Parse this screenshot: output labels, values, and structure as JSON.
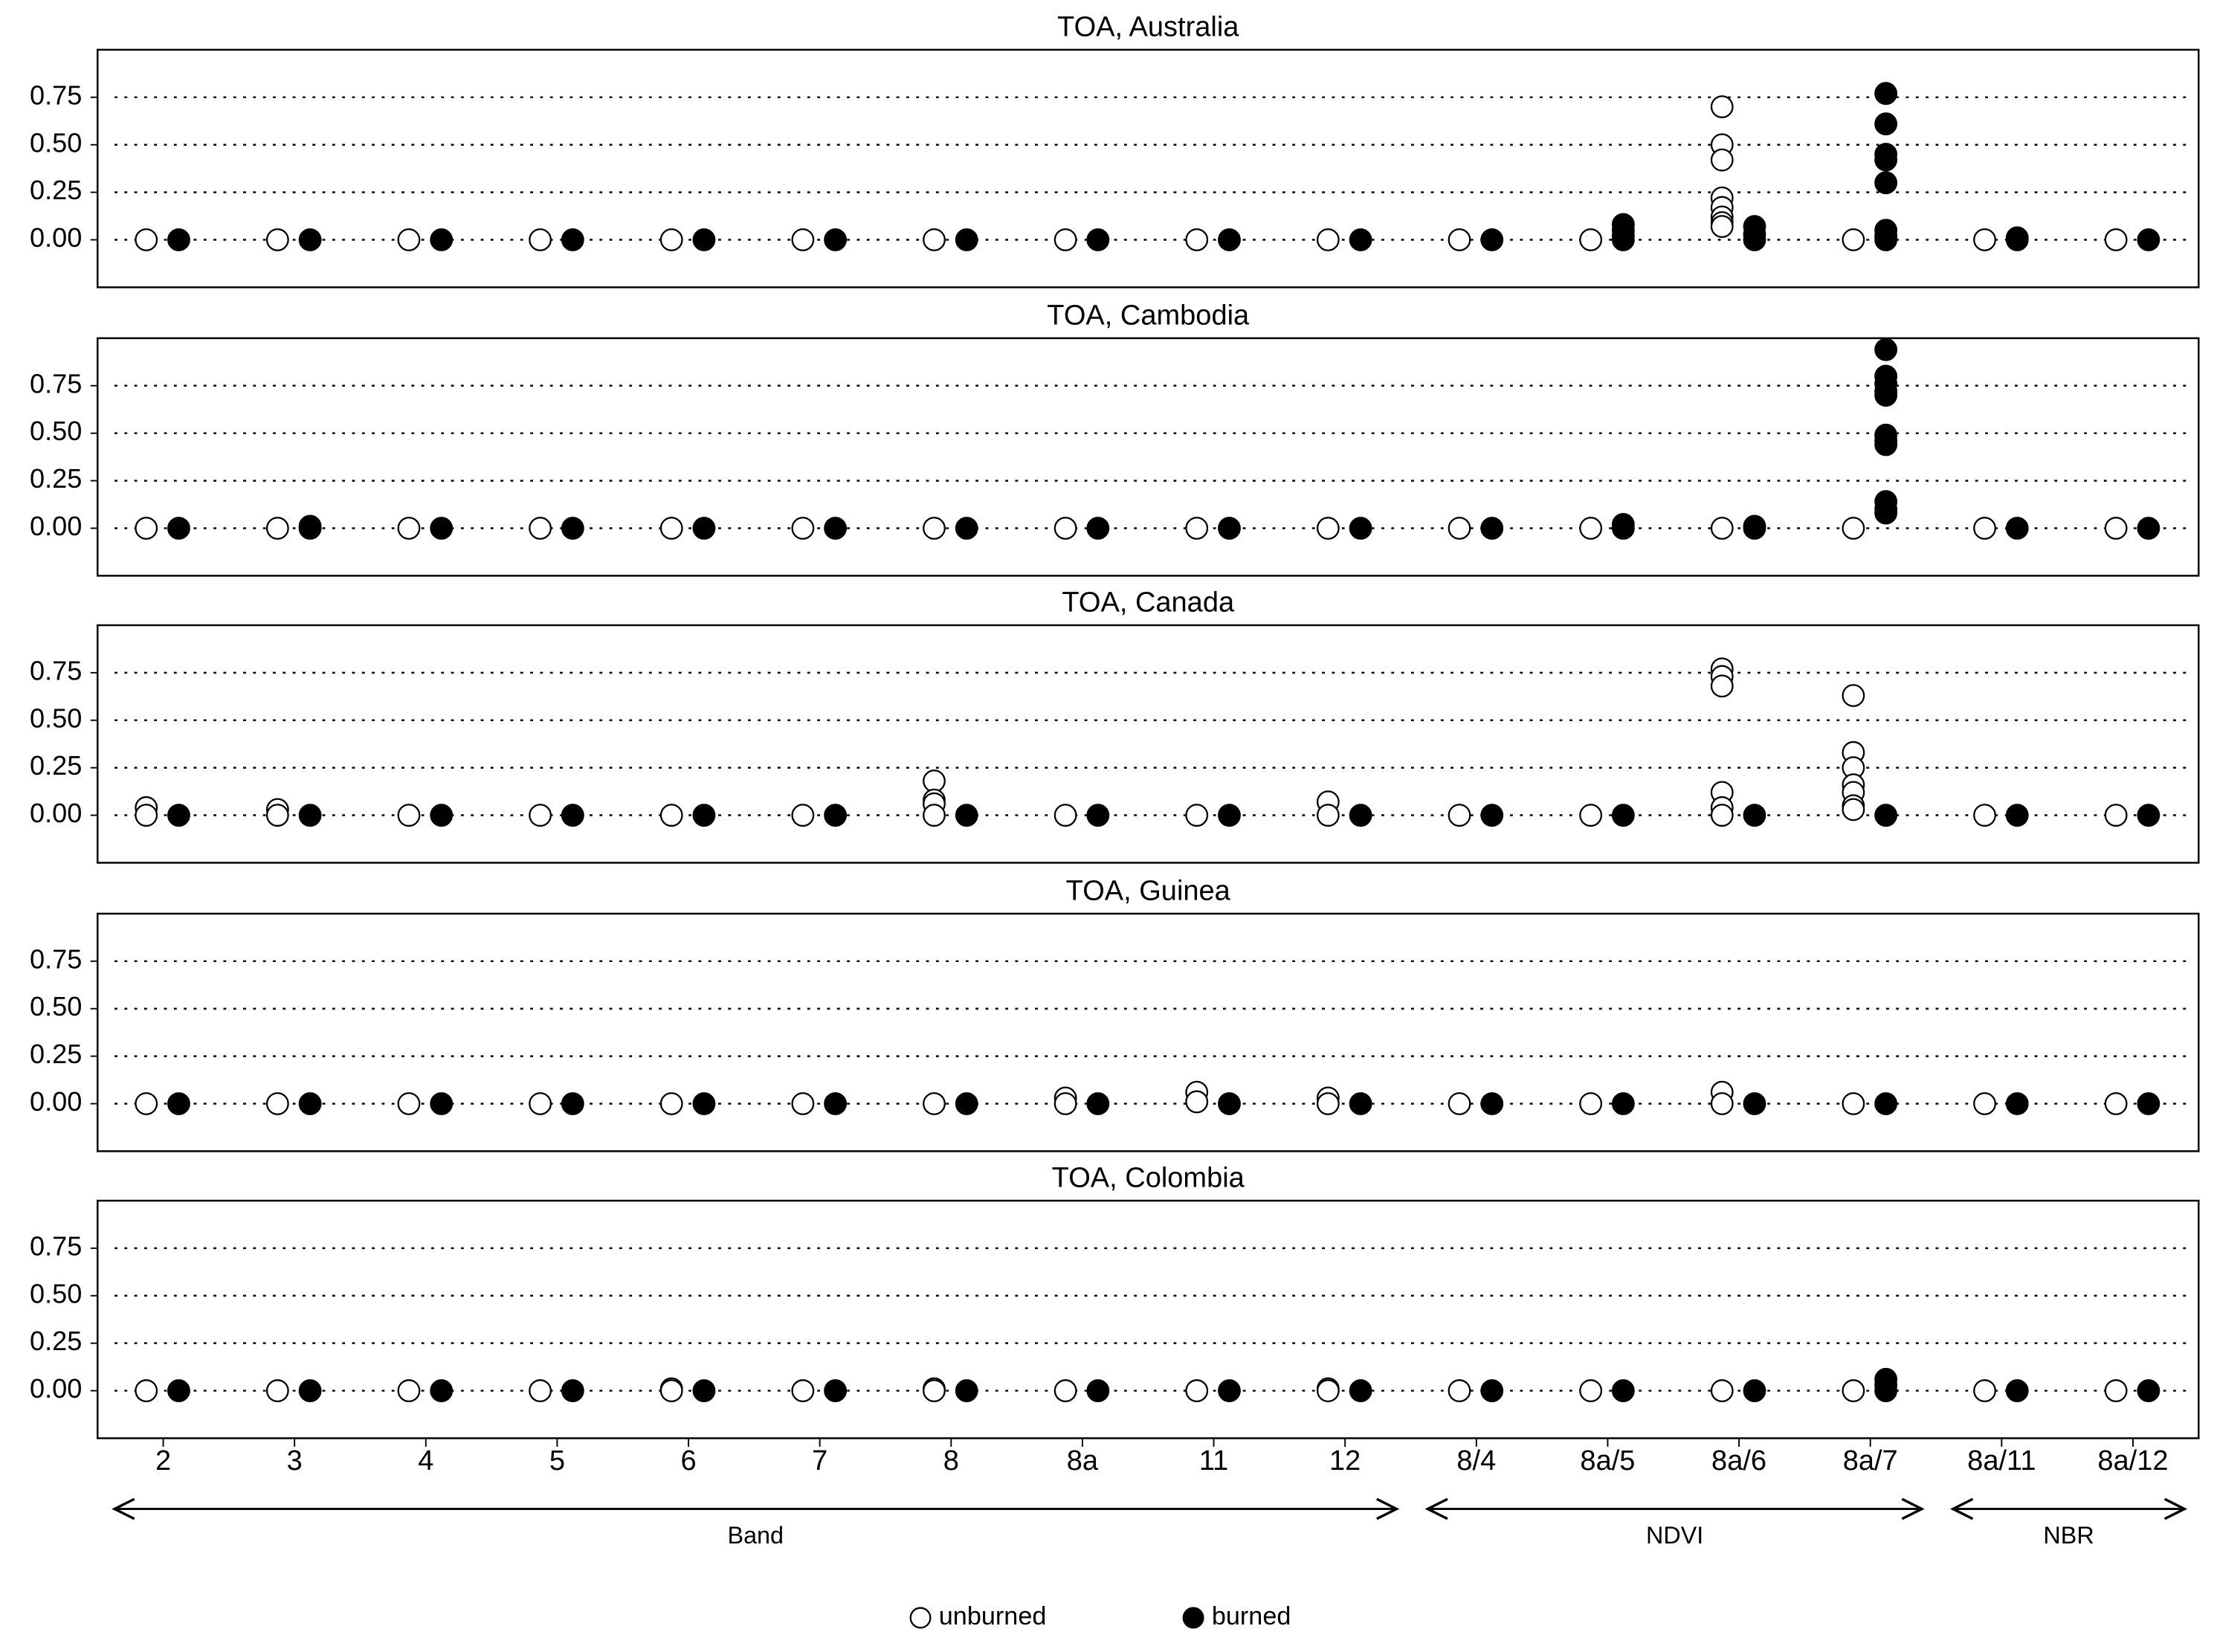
{
  "chart_data": [
    {
      "type": "strip",
      "title": "TOA, Australia",
      "ylim": [
        -0.25,
        1.0
      ],
      "yticks": [
        {
          "value": 0,
          "label": "0.00"
        },
        0.25,
        {
          "value": 0.5,
          "label": "0.50"
        },
        0.75
      ],
      "grid": true,
      "series": [
        {
          "color": "#000000",
          "fill": "#ffffff",
          "values": [
            [
              0
            ],
            [
              0
            ],
            [
              0
            ],
            [
              0
            ],
            [
              0
            ],
            [
              0
            ],
            [
              0
            ],
            [
              0
            ],
            [
              0
            ],
            [
              0
            ],
            [
              0
            ],
            [
              0
            ],
            [
              0.7,
              0.5,
              0.42,
              0.22,
              0.17,
              0.12,
              0.09,
              0.07
            ],
            [
              0
            ],
            [
              0
            ],
            [
              0
            ]
          ]
        },
        {
          "color": "#000000",
          "fill": "#000000",
          "values": [
            [
              0
            ],
            [
              0
            ],
            [
              0
            ],
            [
              0
            ],
            [
              0
            ],
            [
              0
            ],
            [
              0
            ],
            [
              0
            ],
            [
              0
            ],
            [
              0
            ],
            [
              0
            ],
            [
              0.08,
              0.05,
              0.02,
              0
            ],
            [
              0.07,
              0.03,
              0
            ],
            [
              0.77,
              0.61,
              0.45,
              0.42,
              0.3,
              0.05,
              0.02,
              0
            ],
            [
              0.01,
              0
            ],
            [
              0
            ]
          ]
        }
      ]
    },
    {
      "type": "strip",
      "title": "TOA, Cambodia",
      "ylim": [
        -0.25,
        1.0
      ],
      "yticks": [
        {
          "value": 0,
          "label": "0.00"
        },
        0.25,
        {
          "value": 0.5,
          "label": "0.50"
        },
        0.75
      ],
      "grid": true,
      "series": [
        {
          "color": "#000000",
          "fill": "#ffffff",
          "values": [
            [
              0
            ],
            [
              0
            ],
            [
              0
            ],
            [
              0
            ],
            [
              0
            ],
            [
              0
            ],
            [
              0
            ],
            [
              0
            ],
            [
              0
            ],
            [
              0
            ],
            [
              0
            ],
            [
              0
            ],
            [
              0
            ],
            [
              0
            ],
            [
              0
            ],
            [
              0
            ]
          ]
        },
        {
          "color": "#000000",
          "fill": "#000000",
          "values": [
            [
              0
            ],
            [
              0.01,
              0
            ],
            [
              0
            ],
            [
              0
            ],
            [
              0
            ],
            [
              0
            ],
            [
              0
            ],
            [
              0
            ],
            [
              0
            ],
            [
              0
            ],
            [
              0
            ],
            [
              0.02,
              0
            ],
            [
              0.01,
              0
            ],
            [
              0.94,
              0.8,
              0.76,
              0.72,
              0.7,
              0.49,
              0.46,
              0.44,
              0.14,
              0.1,
              0.08
            ],
            [
              0
            ],
            [
              0
            ]
          ]
        }
      ]
    },
    {
      "type": "strip",
      "title": "TOA, Canada",
      "ylim": [
        -0.25,
        1.0
      ],
      "yticks": [
        {
          "value": 0,
          "label": "0.00"
        },
        0.25,
        {
          "value": 0.5,
          "label": "0.50"
        },
        0.75
      ],
      "grid": true,
      "series": [
        {
          "color": "#000000",
          "fill": "#ffffff",
          "values": [
            [
              0.04,
              0
            ],
            [
              0.03,
              0
            ],
            [
              0
            ],
            [
              0
            ],
            [
              0
            ],
            [
              0
            ],
            [
              0.18,
              0.08,
              0.06,
              0
            ],
            [
              0
            ],
            [
              0
            ],
            [
              0.07,
              0
            ],
            [
              0
            ],
            [
              0
            ],
            [
              0.77,
              0.73,
              0.68,
              0.12,
              0.04,
              0
            ],
            [
              0.63,
              0.33,
              0.25,
              0.16,
              0.12,
              0.05,
              0.03
            ],
            [
              0
            ],
            [
              0
            ]
          ]
        },
        {
          "color": "#000000",
          "fill": "#000000",
          "values": [
            [
              0
            ],
            [
              0
            ],
            [
              0
            ],
            [
              0
            ],
            [
              0
            ],
            [
              0
            ],
            [
              0
            ],
            [
              0
            ],
            [
              0
            ],
            [
              0
            ],
            [
              0
            ],
            [
              0
            ],
            [
              0
            ],
            [
              0
            ],
            [
              0
            ],
            [
              0
            ]
          ]
        }
      ]
    },
    {
      "type": "strip",
      "title": "TOA, Guinea",
      "ylim": [
        -0.25,
        1.0
      ],
      "yticks": [
        {
          "value": 0,
          "label": "0.00"
        },
        0.25,
        {
          "value": 0.5,
          "label": "0.50"
        },
        0.75
      ],
      "grid": true,
      "series": [
        {
          "color": "#000000",
          "fill": "#ffffff",
          "values": [
            [
              0
            ],
            [
              0
            ],
            [
              0
            ],
            [
              0
            ],
            [
              0
            ],
            [
              0
            ],
            [
              0
            ],
            [
              0.03,
              0
            ],
            [
              0.06,
              0.01
            ],
            [
              0.03,
              0
            ],
            [
              0
            ],
            [
              0
            ],
            [
              0.06,
              0
            ],
            [
              0
            ],
            [
              0
            ],
            [
              0
            ]
          ]
        },
        {
          "color": "#000000",
          "fill": "#000000",
          "values": [
            [
              0
            ],
            [
              0
            ],
            [
              0
            ],
            [
              0
            ],
            [
              0
            ],
            [
              0
            ],
            [
              0
            ],
            [
              0
            ],
            [
              0
            ],
            [
              0
            ],
            [
              0
            ],
            [
              0
            ],
            [
              0
            ],
            [
              0
            ],
            [
              0
            ],
            [
              0
            ]
          ]
        }
      ]
    },
    {
      "type": "strip",
      "title": "TOA, Colombia",
      "ylim": [
        -0.25,
        1.0
      ],
      "yticks": [
        {
          "value": 0,
          "label": "0.00"
        },
        0.25,
        {
          "value": 0.5,
          "label": "0.50"
        },
        0.75
      ],
      "grid": true,
      "categories": [
        "2",
        "3",
        "4",
        "5",
        "6",
        "7",
        "8",
        "8a",
        "11",
        "12",
        "8/4",
        "8a/5",
        "8a/6",
        "8a/7",
        "8a/11",
        "8a/12"
      ],
      "groups": [
        {
          "label": "Band",
          "count": 10
        },
        {
          "label": "NDVI",
          "count": 4
        },
        {
          "label": "NBR",
          "count": 2
        }
      ],
      "series": [
        {
          "name": "unburned",
          "color": "#000000",
          "fill": "#ffffff",
          "values": [
            [
              0
            ],
            [
              0
            ],
            [
              0
            ],
            [
              0
            ],
            [
              0.01,
              0
            ],
            [
              0
            ],
            [
              0.01,
              0
            ],
            [
              0
            ],
            [
              0
            ],
            [
              0.01,
              0
            ],
            [
              0
            ],
            [
              0
            ],
            [
              0
            ],
            [
              0
            ],
            [
              0
            ],
            [
              0
            ]
          ]
        },
        {
          "name": "burned",
          "color": "#000000",
          "fill": "#000000",
          "values": [
            [
              0
            ],
            [
              0
            ],
            [
              0
            ],
            [
              0
            ],
            [
              0
            ],
            [
              0
            ],
            [
              0
            ],
            [
              0
            ],
            [
              0
            ],
            [
              0
            ],
            [
              0
            ],
            [
              0
            ],
            [
              0
            ],
            [
              0.06,
              0.03,
              0
            ],
            [
              0
            ],
            [
              0
            ]
          ]
        }
      ]
    }
  ]
}
